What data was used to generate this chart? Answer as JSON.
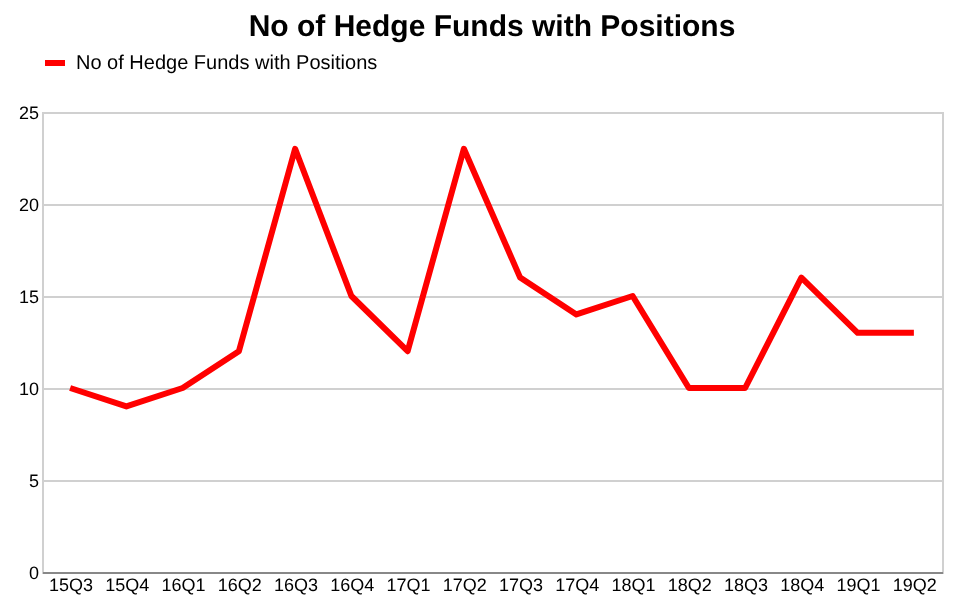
{
  "chart_data": {
    "type": "line",
    "title": "No of Hedge Funds with Positions",
    "categories": [
      "15Q3",
      "15Q4",
      "16Q1",
      "16Q2",
      "16Q3",
      "16Q4",
      "17Q1",
      "17Q2",
      "17Q3",
      "17Q4",
      "18Q1",
      "18Q2",
      "18Q3",
      "18Q4",
      "19Q1",
      "19Q2"
    ],
    "series": [
      {
        "name": "No of Hedge Funds with Positions",
        "color": "#ff0000",
        "values": [
          10,
          9,
          10,
          12,
          23,
          15,
          12,
          23,
          16,
          14,
          15,
          10,
          10,
          16,
          13,
          13
        ]
      }
    ],
    "ylim": [
      0,
      25
    ],
    "yticks": [
      0,
      5,
      10,
      15,
      20,
      25
    ],
    "grid": "y",
    "legend": "top",
    "marker": "none",
    "line_style": "solid"
  }
}
